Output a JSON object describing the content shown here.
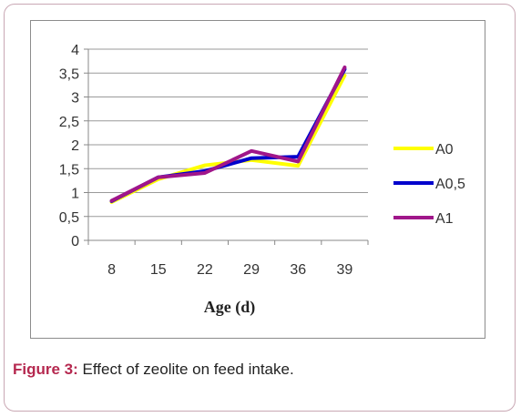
{
  "caption": {
    "prefix": "Figure 3:",
    "text": " Effect of zeolite on feed intake."
  },
  "chart_data": {
    "type": "line",
    "xlabel": "Age (d)",
    "ylabel": "",
    "categories": [
      "8",
      "15",
      "22",
      "29",
      "36",
      "39"
    ],
    "ylim": [
      0,
      4
    ],
    "yticks": [
      "0",
      "0,5",
      "1",
      "1,5",
      "2",
      "2,5",
      "3",
      "3,5",
      "4"
    ],
    "grid": true,
    "legend_position": "right",
    "series": [
      {
        "name": "A0",
        "color": "#ffff00",
        "values": [
          0.8,
          1.28,
          1.57,
          1.68,
          1.56,
          3.45
        ]
      },
      {
        "name": "A0,5",
        "color": "#0000cc",
        "values": [
          0.82,
          1.32,
          1.45,
          1.72,
          1.75,
          3.58
        ]
      },
      {
        "name": "A1",
        "color": "#a0168a",
        "values": [
          0.83,
          1.32,
          1.41,
          1.87,
          1.65,
          3.62
        ]
      }
    ]
  }
}
